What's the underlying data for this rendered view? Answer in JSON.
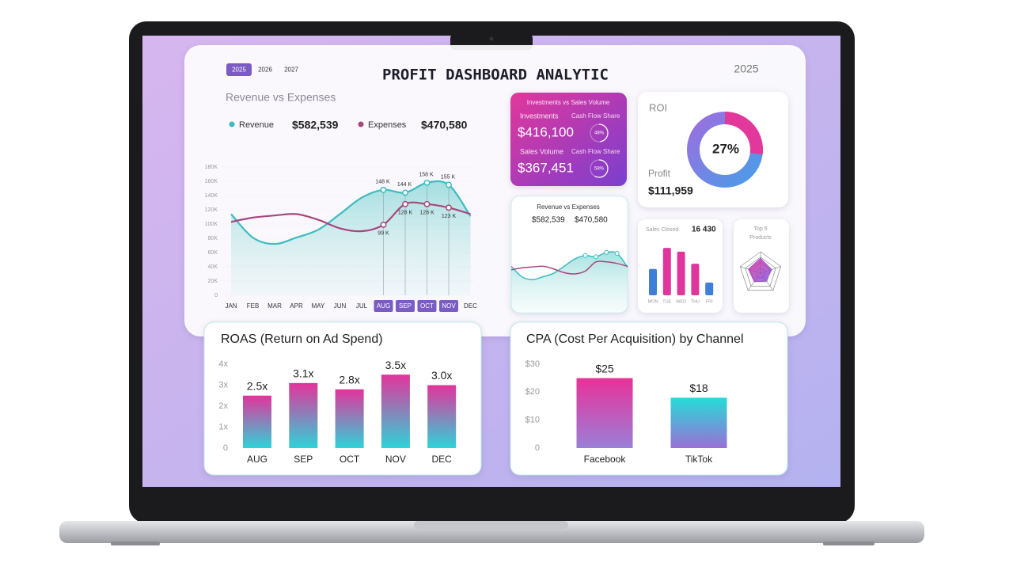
{
  "header": {
    "title": "PROFIT DASHBOARD ANALYTIC",
    "year_tabs": [
      "2025",
      "2026",
      "2027"
    ],
    "year": "2025"
  },
  "revenue_vs_expenses": {
    "type": "line",
    "title": "Revenue vs Expenses",
    "categories": [
      "JAN",
      "FEB",
      "MAR",
      "APR",
      "MAY",
      "JUN",
      "JUL",
      "AUG",
      "SEP",
      "OCT",
      "NOV",
      "DEC"
    ],
    "series": [
      {
        "name": "Revenue",
        "total": "$582,539",
        "color": "#3bbcc0",
        "values": [
          114,
          81,
          72,
          81,
          92,
          114,
          137,
          148,
          144,
          158,
          155,
          111
        ],
        "value_labels": [
          null,
          null,
          null,
          null,
          null,
          null,
          null,
          "148 K",
          "144 K",
          "158 K",
          "155 K",
          null
        ]
      },
      {
        "name": "Expenses",
        "total": "$470,580",
        "color": "#a8467f",
        "values": [
          103,
          109,
          112,
          114,
          106,
          94,
          90,
          99,
          128,
          128,
          123,
          114
        ],
        "value_labels": [
          null,
          null,
          null,
          null,
          null,
          null,
          null,
          "99 K",
          "128 K",
          "128 K",
          "123 K",
          null
        ]
      }
    ],
    "ylim": [
      0,
      180
    ],
    "yticks": [
      0,
      {
        "value": 20,
        "label": "20K"
      },
      {
        "value": 40,
        "label": "40K"
      },
      {
        "value": 60,
        "label": "60K"
      },
      {
        "value": 80,
        "label": "80K"
      },
      {
        "value": 100,
        "label": "100K"
      },
      {
        "value": 120,
        "label": "120K"
      },
      {
        "value": 140,
        "label": "140K"
      },
      {
        "value": 160,
        "label": "160K"
      },
      {
        "value": 180,
        "label": "180K"
      }
    ]
  },
  "investments_card": {
    "title": "Investments vs Sales Volume",
    "rows": [
      {
        "label": "Investments",
        "sub_label": "Cash Flow Share",
        "amount": "$416,100",
        "share": 48,
        "share_label": "48%"
      },
      {
        "label": "Sales Volume",
        "sub_label": "Cash Flow Share",
        "amount": "$367,451",
        "share": 58,
        "share_label": "58%"
      }
    ]
  },
  "roi_card": {
    "type": "pie",
    "title": "ROI",
    "value": 27,
    "value_label": "27%",
    "profit_label": "Profit",
    "profit": "$111,959"
  },
  "mini_chart": {
    "title": "Revenue vs Expenses"
  },
  "sales_closed": {
    "type": "bar",
    "title": "Sales Closed",
    "total": "16 430",
    "categories": [
      "MON",
      "TUE",
      "WED",
      "THU",
      "FRI"
    ],
    "values": [
      35,
      63,
      58,
      42,
      17
    ],
    "colors": [
      "#3f7fd8",
      "#e0359a",
      "#e0359a",
      "#e0359a",
      "#3f7fd8"
    ]
  },
  "top_products": {
    "type": "radar",
    "title_lines": [
      "Top 5",
      "Products"
    ],
    "values": [
      70,
      55,
      45,
      50,
      60
    ]
  },
  "roas": {
    "type": "bar",
    "title": "ROAS (Return on Ad Spend)",
    "categories": [
      "AUG",
      "SEP",
      "OCT",
      "NOV",
      "DEC"
    ],
    "values": [
      2.5,
      3.1,
      2.8,
      3.5,
      3.0
    ],
    "value_labels": [
      "2.5x",
      "3.1x",
      "2.8x",
      "3.5x",
      "3.0x"
    ],
    "ylim": [
      0,
      4
    ],
    "yticks": [
      0,
      {
        "value": 1,
        "label": "1x"
      },
      {
        "value": 2,
        "label": "2x"
      },
      {
        "value": 3,
        "label": "3x"
      },
      {
        "value": 4,
        "label": "4x"
      }
    ]
  },
  "cpa": {
    "type": "bar",
    "title": "CPA (Cost Per Acquisition) by Channel",
    "categories": [
      "Facebook",
      "TikTok"
    ],
    "values": [
      25,
      18
    ],
    "value_labels": [
      "$25",
      "$18"
    ],
    "ylim": [
      0,
      30
    ],
    "yticks": [
      0,
      {
        "value": 10,
        "label": "$10"
      },
      {
        "value": 20,
        "label": "$20"
      },
      {
        "value": 30,
        "label": "$30"
      }
    ]
  }
}
